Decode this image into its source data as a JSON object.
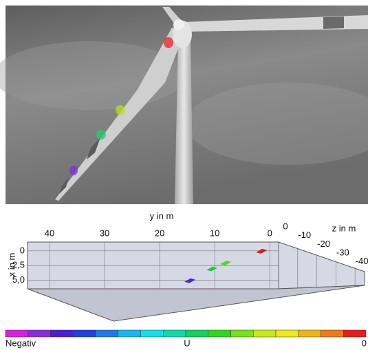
{
  "chart_data": {
    "type": "scatter3d",
    "xlabel": "x in m",
    "ylabel": "y in m",
    "zlabel": "z in m",
    "xlim": [
      -1.5,
      6.2
    ],
    "ylim": [
      44,
      -1.6
    ],
    "zlim": [
      0,
      -45
    ],
    "xticks": [
      0,
      {
        "value": 2.5,
        "label": "2,5"
      },
      {
        "value": 5,
        "label": "5,0"
      }
    ],
    "yticks": [
      40,
      30,
      20,
      10,
      0
    ],
    "zticks": [
      0,
      -10,
      -20,
      -30,
      -40
    ],
    "grid": true,
    "points": {
      "x": [
        0,
        2,
        3,
        5
      ],
      "y": [
        1.5,
        8,
        10.5,
        14.5
      ],
      "colors": [
        "#e0161a",
        "#5ad028",
        "#22c84a",
        "#4a2ad8"
      ]
    },
    "colorbar": {
      "colors": [
        "#d61fe0",
        "#8a2be2",
        "#4a1fd8",
        "#1f3fe0",
        "#1f7ae8",
        "#17b4f0",
        "#12e0e8",
        "#12d8a8",
        "#14d060",
        "#2ed81e",
        "#7ae01a",
        "#c8e81a",
        "#f0e81a",
        "#f0b41a",
        "#f07a1a",
        "#e81a1a"
      ],
      "low_label": "Negativ",
      "title": "U",
      "high": 0
    }
  }
}
